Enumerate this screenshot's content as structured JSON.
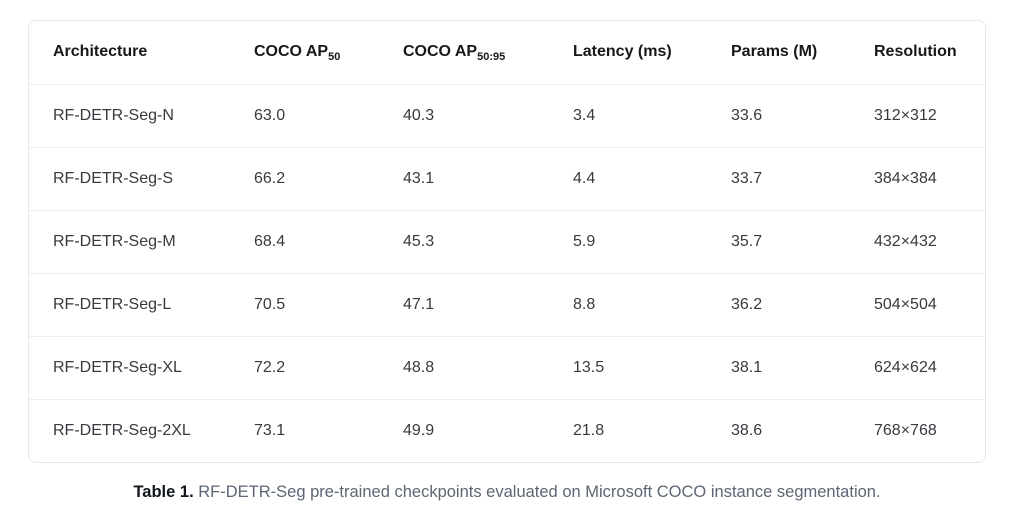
{
  "colors": {
    "page_background": "#ffffff",
    "table_border": "#e7e8ea",
    "row_divider": "#ededee",
    "header_text": "#17181a",
    "cell_text": "#373a3f",
    "caption_text": "#5c6674",
    "caption_prefix_text": "#10151c"
  },
  "table": {
    "columns": [
      {
        "label": "Architecture",
        "sub": ""
      },
      {
        "label": "COCO AP",
        "sub": "50"
      },
      {
        "label": "COCO AP",
        "sub": "50:95"
      },
      {
        "label": "Latency (ms)",
        "sub": ""
      },
      {
        "label": "Params (M)",
        "sub": ""
      },
      {
        "label": "Resolution",
        "sub": ""
      }
    ],
    "rows": [
      [
        "RF-DETR-Seg-N",
        "63.0",
        "40.3",
        "3.4",
        "33.6",
        "312×312"
      ],
      [
        "RF-DETR-Seg-S",
        "66.2",
        "43.1",
        "4.4",
        "33.7",
        "384×384"
      ],
      [
        "RF-DETR-Seg-M",
        "68.4",
        "45.3",
        "5.9",
        "35.7",
        "432×432"
      ],
      [
        "RF-DETR-Seg-L",
        "70.5",
        "47.1",
        "8.8",
        "36.2",
        "504×504"
      ],
      [
        "RF-DETR-Seg-XL",
        "72.2",
        "48.8",
        "13.5",
        "38.1",
        "624×624"
      ],
      [
        "RF-DETR-Seg-2XL",
        "73.1",
        "49.9",
        "21.8",
        "38.6",
        "768×768"
      ]
    ]
  },
  "caption": {
    "prefix": "Table 1.",
    "text": " RF-DETR-Seg pre-trained checkpoints evaluated on Microsoft COCO instance segmentation."
  }
}
